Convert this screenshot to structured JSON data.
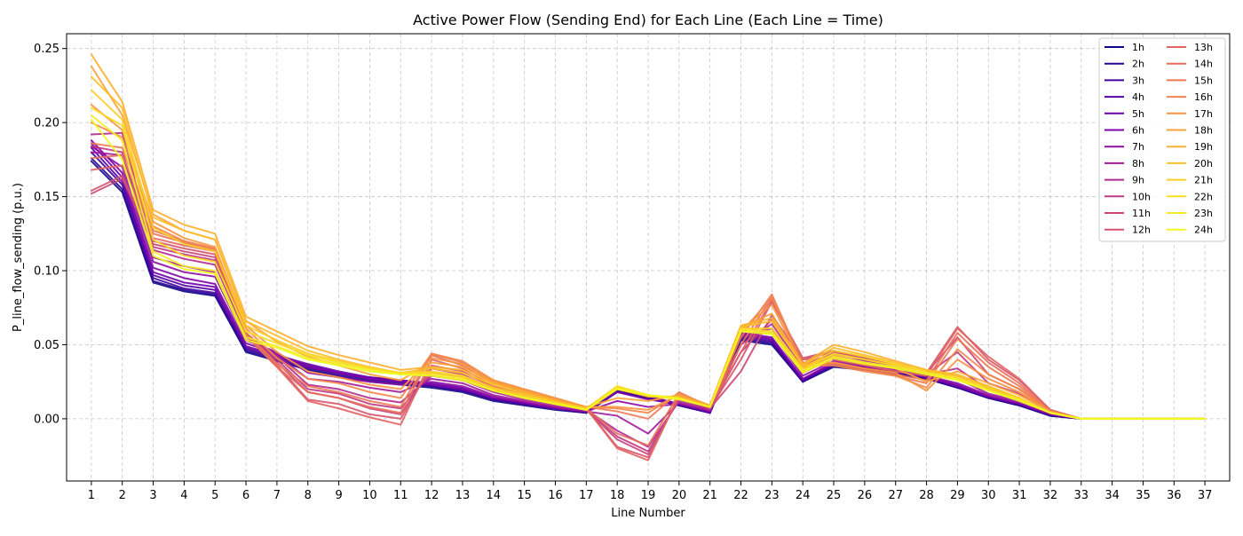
{
  "chart_data": {
    "type": "line",
    "title": "Active Power Flow (Sending End) for Each Line (Each Line = Time)",
    "xlabel": "Line Number",
    "ylabel": "P_line_flow_sending (p.u.)",
    "x": [
      1,
      2,
      3,
      4,
      5,
      6,
      7,
      8,
      9,
      10,
      11,
      12,
      13,
      14,
      15,
      16,
      17,
      18,
      19,
      20,
      21,
      22,
      23,
      24,
      25,
      26,
      27,
      28,
      29,
      30,
      31,
      32,
      33,
      34,
      35,
      36,
      37
    ],
    "xlim": [
      0.2,
      37.8
    ],
    "ylim": [
      -0.042,
      0.26
    ],
    "yticks": [
      0.0,
      0.05,
      0.1,
      0.15,
      0.2,
      0.25
    ],
    "ytick_labels": [
      "0.00",
      "0.05",
      "0.10",
      "0.15",
      "0.20",
      "0.25"
    ],
    "grid": true,
    "legend": {
      "placement": "top-right",
      "columns": 2
    },
    "colormap": "plasma",
    "series": [
      {
        "name": "1h",
        "color": "#0d0887",
        "values": [
          0.174,
          0.153,
          0.092,
          0.086,
          0.083,
          0.045,
          0.039,
          0.033,
          0.028,
          0.025,
          0.023,
          0.021,
          0.018,
          0.012,
          0.009,
          0.006,
          0.004,
          0.018,
          0.014,
          0.009,
          0.004,
          0.053,
          0.05,
          0.025,
          0.035,
          0.033,
          0.03,
          0.027,
          0.021,
          0.014,
          0.009,
          0.002,
          0.0,
          0.0,
          0.0,
          0.0,
          0.0
        ]
      },
      {
        "name": "2h",
        "color": "#2a0593",
        "values": [
          0.176,
          0.155,
          0.093,
          0.087,
          0.084,
          0.046,
          0.04,
          0.034,
          0.029,
          0.026,
          0.024,
          0.022,
          0.019,
          0.013,
          0.01,
          0.007,
          0.004,
          0.019,
          0.014,
          0.009,
          0.004,
          0.054,
          0.051,
          0.025,
          0.036,
          0.034,
          0.031,
          0.027,
          0.021,
          0.014,
          0.009,
          0.002,
          0.0,
          0.0,
          0.0,
          0.0,
          0.0
        ]
      },
      {
        "name": "3h",
        "color": "#41049d",
        "values": [
          0.18,
          0.158,
          0.095,
          0.088,
          0.085,
          0.047,
          0.041,
          0.035,
          0.03,
          0.027,
          0.025,
          0.022,
          0.019,
          0.013,
          0.01,
          0.007,
          0.004,
          0.019,
          0.015,
          0.01,
          0.004,
          0.055,
          0.052,
          0.026,
          0.036,
          0.034,
          0.031,
          0.028,
          0.022,
          0.015,
          0.01,
          0.003,
          0.0,
          0.0,
          0.0,
          0.0,
          0.0
        ]
      },
      {
        "name": "4h",
        "color": "#5601a4",
        "values": [
          0.183,
          0.16,
          0.097,
          0.09,
          0.087,
          0.048,
          0.042,
          0.036,
          0.031,
          0.028,
          0.026,
          0.023,
          0.02,
          0.014,
          0.01,
          0.007,
          0.005,
          0.02,
          0.015,
          0.01,
          0.004,
          0.056,
          0.053,
          0.026,
          0.037,
          0.035,
          0.032,
          0.028,
          0.022,
          0.015,
          0.01,
          0.003,
          0.0,
          0.0,
          0.0,
          0.0,
          0.0
        ]
      },
      {
        "name": "5h",
        "color": "#6a00a8",
        "values": [
          0.186,
          0.163,
          0.099,
          0.092,
          0.089,
          0.049,
          0.043,
          0.037,
          0.032,
          0.028,
          0.026,
          0.024,
          0.021,
          0.014,
          0.011,
          0.007,
          0.005,
          0.02,
          0.015,
          0.01,
          0.005,
          0.057,
          0.054,
          0.027,
          0.037,
          0.035,
          0.032,
          0.029,
          0.023,
          0.015,
          0.01,
          0.003,
          0.0,
          0.0,
          0.0,
          0.0,
          0.0
        ]
      },
      {
        "name": "6h",
        "color": "#7e03a8",
        "values": [
          0.188,
          0.166,
          0.102,
          0.095,
          0.091,
          0.051,
          0.044,
          0.035,
          0.031,
          0.027,
          0.025,
          0.023,
          0.02,
          0.014,
          0.011,
          0.007,
          0.005,
          0.018,
          0.013,
          0.01,
          0.005,
          0.058,
          0.055,
          0.027,
          0.038,
          0.035,
          0.032,
          0.028,
          0.022,
          0.015,
          0.01,
          0.003,
          0.0,
          0.0,
          0.0,
          0.0,
          0.0
        ]
      },
      {
        "name": "7h",
        "color": "#8f0da4",
        "values": [
          0.184,
          0.17,
          0.106,
          0.099,
          0.096,
          0.053,
          0.045,
          0.031,
          0.028,
          0.025,
          0.023,
          0.025,
          0.022,
          0.015,
          0.011,
          0.008,
          0.005,
          0.012,
          0.008,
          0.01,
          0.005,
          0.057,
          0.058,
          0.029,
          0.039,
          0.036,
          0.032,
          0.029,
          0.024,
          0.016,
          0.011,
          0.003,
          0.0,
          0.0,
          0.0,
          0.0,
          0.0
        ]
      },
      {
        "name": "8h",
        "color": "#a01a9c",
        "values": [
          0.18,
          0.178,
          0.109,
          0.103,
          0.099,
          0.055,
          0.043,
          0.027,
          0.025,
          0.021,
          0.018,
          0.027,
          0.024,
          0.016,
          0.012,
          0.008,
          0.005,
          0.002,
          -0.01,
          0.011,
          0.006,
          0.055,
          0.061,
          0.031,
          0.041,
          0.037,
          0.033,
          0.03,
          0.027,
          0.017,
          0.012,
          0.004,
          0.0,
          0.0,
          0.0,
          0.0,
          0.0
        ]
      },
      {
        "name": "9h",
        "color": "#b12a90",
        "values": [
          0.192,
          0.193,
          0.114,
          0.108,
          0.104,
          0.057,
          0.042,
          0.023,
          0.02,
          0.014,
          0.011,
          0.029,
          0.026,
          0.018,
          0.013,
          0.009,
          0.006,
          -0.008,
          -0.019,
          0.012,
          0.006,
          0.05,
          0.064,
          0.034,
          0.042,
          0.039,
          0.034,
          0.03,
          0.034,
          0.02,
          0.014,
          0.004,
          0.0,
          0.0,
          0.0,
          0.0,
          0.0
        ]
      },
      {
        "name": "10h",
        "color": "#bf3984",
        "values": [
          0.184,
          0.18,
          0.116,
          0.111,
          0.107,
          0.058,
          0.04,
          0.02,
          0.017,
          0.01,
          0.007,
          0.031,
          0.028,
          0.019,
          0.014,
          0.01,
          0.006,
          -0.012,
          -0.022,
          0.013,
          0.007,
          0.045,
          0.067,
          0.037,
          0.044,
          0.04,
          0.035,
          0.03,
          0.045,
          0.024,
          0.017,
          0.005,
          0.0,
          0.0,
          0.0,
          0.0,
          0.0
        ]
      },
      {
        "name": "11h",
        "color": "#cb4679",
        "values": [
          0.152,
          0.162,
          0.118,
          0.113,
          0.109,
          0.058,
          0.038,
          0.018,
          0.014,
          0.007,
          0.003,
          0.034,
          0.03,
          0.02,
          0.015,
          0.01,
          0.006,
          -0.014,
          -0.024,
          0.014,
          0.007,
          0.032,
          0.07,
          0.04,
          0.045,
          0.041,
          0.036,
          0.031,
          0.055,
          0.03,
          0.02,
          0.005,
          0.0,
          0.0,
          0.0,
          0.0,
          0.0
        ]
      },
      {
        "name": "12h",
        "color": "#d6556d",
        "values": [
          0.154,
          0.164,
          0.12,
          0.115,
          0.111,
          0.057,
          0.036,
          0.013,
          0.01,
          0.003,
          0.0,
          0.036,
          0.032,
          0.021,
          0.016,
          0.011,
          0.007,
          -0.019,
          -0.026,
          0.015,
          0.007,
          0.04,
          0.079,
          0.041,
          0.046,
          0.041,
          0.036,
          0.031,
          0.062,
          0.04,
          0.026,
          0.006,
          0.0,
          0.0,
          0.0,
          0.0,
          0.0
        ]
      },
      {
        "name": "13h",
        "color": "#e16462",
        "values": [
          0.168,
          0.171,
          0.122,
          0.117,
          0.113,
          0.056,
          0.035,
          0.012,
          0.007,
          0.001,
          -0.004,
          0.04,
          0.034,
          0.022,
          0.017,
          0.011,
          0.007,
          -0.02,
          -0.028,
          0.016,
          0.008,
          0.045,
          0.08,
          0.04,
          0.04,
          0.036,
          0.032,
          0.029,
          0.061,
          0.042,
          0.027,
          0.006,
          0.0,
          0.0,
          0.0,
          0.0,
          0.0
        ]
      },
      {
        "name": "14h",
        "color": "#e76f5a",
        "values": [
          0.176,
          0.178,
          0.125,
          0.119,
          0.114,
          0.056,
          0.035,
          0.018,
          0.014,
          0.008,
          0.004,
          0.043,
          0.036,
          0.024,
          0.018,
          0.012,
          0.007,
          -0.01,
          -0.018,
          0.017,
          0.008,
          0.05,
          0.082,
          0.038,
          0.038,
          0.034,
          0.03,
          0.026,
          0.058,
          0.038,
          0.024,
          0.005,
          0.0,
          0.0,
          0.0,
          0.0,
          0.0
        ]
      },
      {
        "name": "15h",
        "color": "#ed7953",
        "values": [
          0.186,
          0.183,
          0.127,
          0.12,
          0.115,
          0.058,
          0.037,
          0.022,
          0.018,
          0.012,
          0.008,
          0.044,
          0.038,
          0.025,
          0.019,
          0.013,
          0.008,
          0.005,
          0.0,
          0.018,
          0.008,
          0.055,
          0.084,
          0.037,
          0.037,
          0.033,
          0.029,
          0.024,
          0.054,
          0.035,
          0.022,
          0.005,
          0.0,
          0.0,
          0.0,
          0.0,
          0.0
        ]
      },
      {
        "name": "16h",
        "color": "#f3874b",
        "values": [
          0.2,
          0.19,
          0.13,
          0.12,
          0.114,
          0.061,
          0.041,
          0.027,
          0.024,
          0.018,
          0.014,
          0.044,
          0.039,
          0.026,
          0.02,
          0.014,
          0.008,
          0.007,
          0.004,
          0.017,
          0.009,
          0.058,
          0.082,
          0.036,
          0.036,
          0.032,
          0.029,
          0.021,
          0.047,
          0.03,
          0.02,
          0.005,
          0.0,
          0.0,
          0.0,
          0.0,
          0.0
        ]
      },
      {
        "name": "17h",
        "color": "#f89441",
        "values": [
          0.212,
          0.195,
          0.133,
          0.122,
          0.116,
          0.063,
          0.045,
          0.032,
          0.028,
          0.023,
          0.02,
          0.041,
          0.037,
          0.026,
          0.02,
          0.014,
          0.008,
          0.008,
          0.006,
          0.016,
          0.009,
          0.06,
          0.077,
          0.036,
          0.038,
          0.034,
          0.031,
          0.019,
          0.04,
          0.027,
          0.018,
          0.005,
          0.0,
          0.0,
          0.0,
          0.0,
          0.0
        ]
      },
      {
        "name": "18h",
        "color": "#fba238",
        "values": [
          0.238,
          0.205,
          0.138,
          0.127,
          0.121,
          0.066,
          0.052,
          0.042,
          0.036,
          0.03,
          0.026,
          0.038,
          0.035,
          0.025,
          0.019,
          0.013,
          0.008,
          0.014,
          0.012,
          0.016,
          0.009,
          0.062,
          0.071,
          0.035,
          0.043,
          0.038,
          0.034,
          0.025,
          0.032,
          0.024,
          0.016,
          0.005,
          0.0,
          0.0,
          0.0,
          0.0,
          0.0
        ]
      },
      {
        "name": "19h",
        "color": "#fdaf31",
        "values": [
          0.246,
          0.214,
          0.141,
          0.131,
          0.125,
          0.069,
          0.059,
          0.049,
          0.043,
          0.038,
          0.033,
          0.035,
          0.033,
          0.024,
          0.018,
          0.012,
          0.007,
          0.02,
          0.015,
          0.015,
          0.009,
          0.063,
          0.068,
          0.037,
          0.05,
          0.045,
          0.039,
          0.033,
          0.029,
          0.022,
          0.014,
          0.004,
          0.0,
          0.0,
          0.0,
          0.0,
          0.0
        ]
      },
      {
        "name": "20h",
        "color": "#fdbe29",
        "values": [
          0.231,
          0.21,
          0.136,
          0.127,
          0.121,
          0.066,
          0.056,
          0.046,
          0.04,
          0.035,
          0.031,
          0.034,
          0.031,
          0.023,
          0.017,
          0.012,
          0.007,
          0.021,
          0.015,
          0.014,
          0.008,
          0.062,
          0.066,
          0.036,
          0.048,
          0.043,
          0.038,
          0.033,
          0.03,
          0.022,
          0.014,
          0.004,
          0.0,
          0.0,
          0.0,
          0.0,
          0.0
        ]
      },
      {
        "name": "21h",
        "color": "#fccd25",
        "values": [
          0.222,
          0.202,
          0.129,
          0.118,
          0.113,
          0.063,
          0.053,
          0.044,
          0.039,
          0.034,
          0.031,
          0.032,
          0.029,
          0.021,
          0.016,
          0.011,
          0.007,
          0.022,
          0.016,
          0.014,
          0.008,
          0.061,
          0.061,
          0.034,
          0.046,
          0.042,
          0.037,
          0.032,
          0.028,
          0.021,
          0.014,
          0.004,
          0.0,
          0.0,
          0.0,
          0.0,
          0.0
        ]
      },
      {
        "name": "22h",
        "color": "#f9dc24",
        "values": [
          0.21,
          0.198,
          0.121,
          0.11,
          0.106,
          0.059,
          0.051,
          0.043,
          0.038,
          0.034,
          0.031,
          0.031,
          0.028,
          0.02,
          0.015,
          0.011,
          0.006,
          0.022,
          0.016,
          0.014,
          0.008,
          0.061,
          0.059,
          0.033,
          0.044,
          0.04,
          0.036,
          0.031,
          0.027,
          0.02,
          0.013,
          0.004,
          0.0,
          0.0,
          0.0,
          0.0,
          0.0
        ]
      },
      {
        "name": "23h",
        "color": "#f5eb27",
        "values": [
          0.205,
          0.188,
          0.113,
          0.103,
          0.1,
          0.055,
          0.049,
          0.041,
          0.037,
          0.033,
          0.03,
          0.03,
          0.027,
          0.019,
          0.014,
          0.01,
          0.006,
          0.021,
          0.016,
          0.014,
          0.008,
          0.06,
          0.058,
          0.032,
          0.042,
          0.038,
          0.035,
          0.031,
          0.027,
          0.019,
          0.013,
          0.004,
          0.0,
          0.0,
          0.0,
          0.0,
          0.0
        ]
      },
      {
        "name": "24h",
        "color": "#f0f921",
        "values": [
          0.202,
          0.175,
          0.11,
          0.101,
          0.098,
          0.053,
          0.048,
          0.04,
          0.036,
          0.032,
          0.03,
          0.029,
          0.026,
          0.019,
          0.014,
          0.01,
          0.006,
          0.02,
          0.016,
          0.013,
          0.008,
          0.059,
          0.057,
          0.031,
          0.041,
          0.037,
          0.034,
          0.03,
          0.026,
          0.019,
          0.012,
          0.004,
          0.0,
          0.0,
          0.0,
          0.0,
          0.0
        ]
      }
    ]
  }
}
